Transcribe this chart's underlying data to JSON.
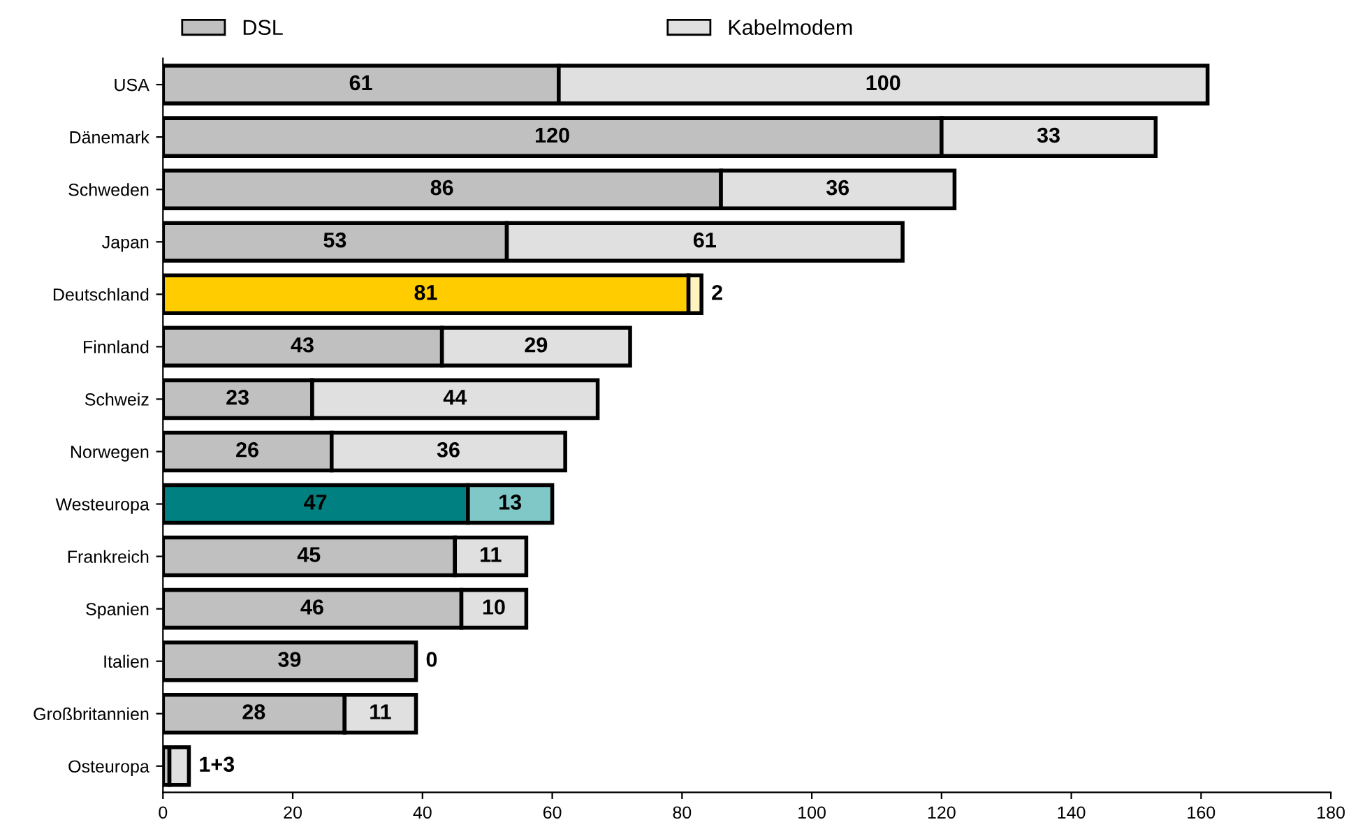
{
  "chart_data": {
    "type": "bar",
    "orientation": "horizontal",
    "stacked": true,
    "categories": [
      "USA",
      "Dänemark",
      "Schweden",
      "Japan",
      "Deutschland",
      "Finnland",
      "Schweiz",
      "Norwegen",
      "Westeuropa",
      "Frankreich",
      "Spanien",
      "Italien",
      "Großbritannien",
      "Osteuropa"
    ],
    "series": [
      {
        "name": "DSL",
        "color": "#c0c0c0",
        "colors": [
          "#c0c0c0",
          "#c0c0c0",
          "#c0c0c0",
          "#c0c0c0",
          "#ffcc00",
          "#c0c0c0",
          "#c0c0c0",
          "#c0c0c0",
          "#008080",
          "#c0c0c0",
          "#c0c0c0",
          "#c0c0c0",
          "#c0c0c0",
          "#c0c0c0"
        ],
        "values": [
          61,
          120,
          86,
          53,
          81,
          43,
          23,
          26,
          47,
          45,
          46,
          39,
          28,
          1
        ],
        "value_labels": [
          "61",
          "120",
          "86",
          "53",
          "81",
          "43",
          "23",
          "26",
          "47",
          "45",
          "46",
          "39",
          "28",
          null
        ]
      },
      {
        "name": "Kabelmodem",
        "color": "#e0e0e0",
        "colors": [
          "#e0e0e0",
          "#e0e0e0",
          "#e0e0e0",
          "#e0e0e0",
          "#fff4c0",
          "#e0e0e0",
          "#e0e0e0",
          "#e0e0e0",
          "#80c8c8",
          "#e0e0e0",
          "#e0e0e0",
          "#e0e0e0",
          "#e0e0e0",
          "#e0e0e0"
        ],
        "values": [
          100,
          33,
          36,
          61,
          2,
          29,
          44,
          36,
          13,
          11,
          10,
          0,
          11,
          3
        ],
        "value_labels": [
          "100",
          "33",
          "36",
          "61",
          "2",
          "29",
          "44",
          "36",
          "13",
          "11",
          "10",
          "0",
          "11",
          "1+3"
        ]
      }
    ],
    "xlim": [
      0,
      180
    ],
    "xticks": [
      0,
      20,
      40,
      60,
      80,
      100,
      120,
      140,
      160,
      180
    ],
    "legend": "top",
    "grid": false
  }
}
